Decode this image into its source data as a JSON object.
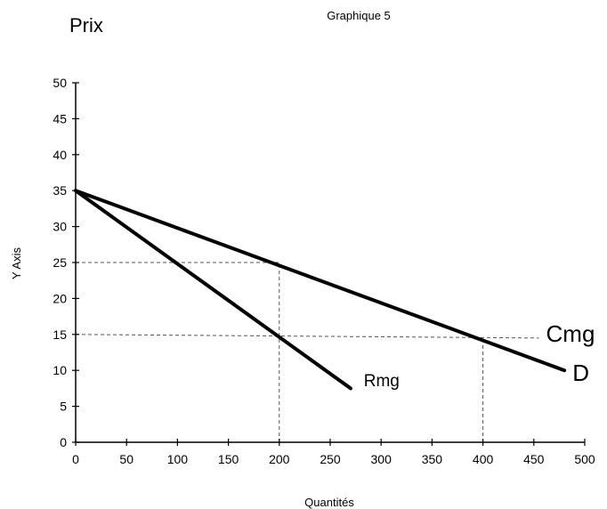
{
  "chart_data": {
    "type": "line",
    "title": "Graphique 5",
    "price_label": "Prix",
    "xlabel": "Quantités",
    "ylabel": "Y Axis",
    "xlim": [
      0,
      500
    ],
    "ylim": [
      0,
      50
    ],
    "x_ticks": [
      "0",
      "50",
      "100",
      "150",
      "200",
      "250",
      "300",
      "350",
      "400",
      "450",
      "500"
    ],
    "y_ticks": [
      "0",
      "5",
      "10",
      "15",
      "20",
      "25",
      "30",
      "35",
      "40",
      "45",
      "50"
    ],
    "grid": false,
    "series": [
      {
        "name": "D",
        "x": [
          0,
          480
        ],
        "y": [
          35,
          10
        ],
        "color": "#000000"
      },
      {
        "name": "Rmg",
        "x": [
          0,
          270
        ],
        "y": [
          35,
          7.5
        ],
        "color": "#000000"
      }
    ],
    "guides": [
      {
        "x": [
          0,
          200
        ],
        "y": [
          25,
          25
        ]
      },
      {
        "x": [
          200,
          200
        ],
        "y": [
          0,
          25
        ]
      },
      {
        "x": [
          0,
          455
        ],
        "y": [
          15,
          14.5
        ]
      },
      {
        "x": [
          400,
          400
        ],
        "y": [
          0,
          14.5
        ]
      }
    ],
    "annotations": [
      {
        "text": "Cmg",
        "x": 462,
        "y": 15
      },
      {
        "text": "D",
        "x": 488,
        "y": 9.5
      },
      {
        "text": "Rmg",
        "x": 283,
        "y": 8.8
      }
    ]
  }
}
